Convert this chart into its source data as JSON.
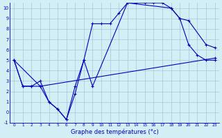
{
  "title": "Graphe des températures (°c)",
  "background_color": "#d4eef5",
  "grid_color": "#a0c8d8",
  "line_color": "#0000bb",
  "xlim": [
    -0.5,
    23.5
  ],
  "ylim": [
    -1,
    10.5
  ],
  "ylim_display": [
    -1,
    10
  ],
  "xticks": [
    0,
    1,
    2,
    3,
    4,
    5,
    6,
    7,
    8,
    9,
    10,
    11,
    12,
    13,
    14,
    15,
    16,
    17,
    18,
    19,
    20,
    21,
    22,
    23
  ],
  "yticks": [
    -1,
    0,
    1,
    2,
    3,
    4,
    5,
    6,
    7,
    8,
    9,
    10
  ],
  "line1_x": [
    0,
    1,
    2,
    3,
    4,
    5,
    6,
    7,
    8,
    9,
    10,
    11,
    12,
    13,
    14,
    15,
    16,
    17,
    18,
    19,
    20,
    21,
    22,
    23
  ],
  "line1_y": [
    5,
    2.5,
    2.5,
    3,
    1,
    0.3,
    -0.7,
    2.5,
    5,
    8.5,
    8.5,
    8.5,
    9.5,
    10.5,
    10.5,
    10.5,
    10.5,
    10.5,
    10,
    9,
    6.5,
    5.5,
    5,
    5
  ],
  "line2_x": [
    0,
    3,
    4,
    5,
    6,
    7,
    8,
    9,
    13,
    18,
    19,
    20,
    22,
    23
  ],
  "line2_y": [
    5,
    2.5,
    1,
    0.3,
    -0.7,
    1.8,
    5,
    2.5,
    10.5,
    10,
    9,
    8.8,
    6.5,
    6.2
  ],
  "line3_x": [
    0,
    1,
    2,
    3,
    23
  ],
  "line3_y": [
    5,
    2.5,
    2.5,
    2.5,
    5.2
  ]
}
